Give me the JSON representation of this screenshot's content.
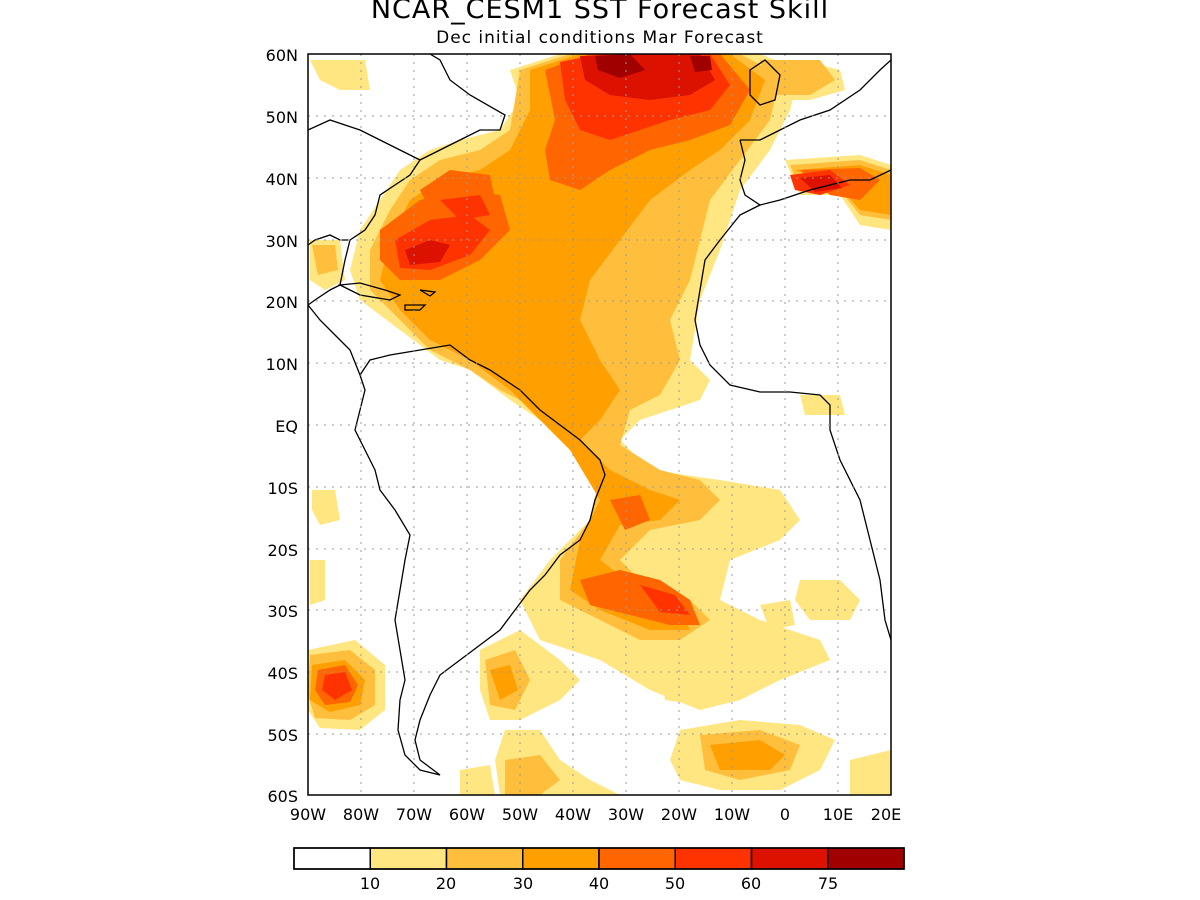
{
  "header": {
    "title": "NCAR_CESM1 SST Forecast Skill",
    "subtitle": "Dec initial conditions  Mar Forecast"
  },
  "map": {
    "region": "Atlantic Ocean",
    "lat_range": [
      -60,
      60
    ],
    "lon_range": [
      -90,
      20
    ],
    "lat_labels": [
      "60N",
      "50N",
      "40N",
      "30N",
      "20N",
      "10N",
      "EQ",
      "10S",
      "20S",
      "30S",
      "40S",
      "50S",
      "60S"
    ],
    "lon_labels": [
      "90W",
      "80W",
      "70W",
      "60W",
      "50W",
      "40W",
      "30W",
      "20W",
      "10W",
      "0",
      "10E",
      "20E"
    ],
    "grid": "dotted"
  },
  "legend": {
    "levels": [
      "10",
      "20",
      "30",
      "40",
      "50",
      "60",
      "75"
    ],
    "colors": [
      "#ffffff",
      "#ffe680",
      "#ffbf3c",
      "#ff9f00",
      "#ff6600",
      "#ff3300",
      "#dd1100",
      "#a00000"
    ]
  }
}
